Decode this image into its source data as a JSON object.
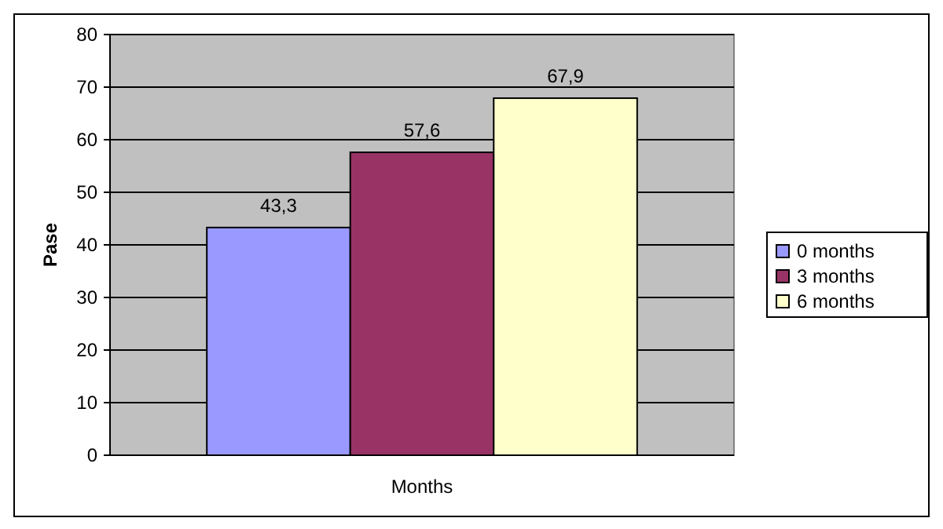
{
  "chart_data": {
    "type": "bar",
    "xlabel": "Months",
    "ylabel": "Pase",
    "categories": [
      null
    ],
    "series": [
      {
        "name": "0 months",
        "color": "#9999ff",
        "values": [
          43.3
        ],
        "value_labels": [
          "43,3"
        ]
      },
      {
        "name": "3 months",
        "color": "#993366",
        "values": [
          57.6
        ],
        "value_labels": [
          "57,6"
        ]
      },
      {
        "name": "6 months",
        "color": "#ffffcc",
        "values": [
          67.9
        ],
        "value_labels": [
          "67,9"
        ]
      }
    ],
    "ylim": [
      0,
      80
    ],
    "yticks": [
      0,
      10,
      20,
      30,
      40,
      50,
      60,
      70,
      80
    ],
    "grid": "y",
    "legend": "right"
  }
}
